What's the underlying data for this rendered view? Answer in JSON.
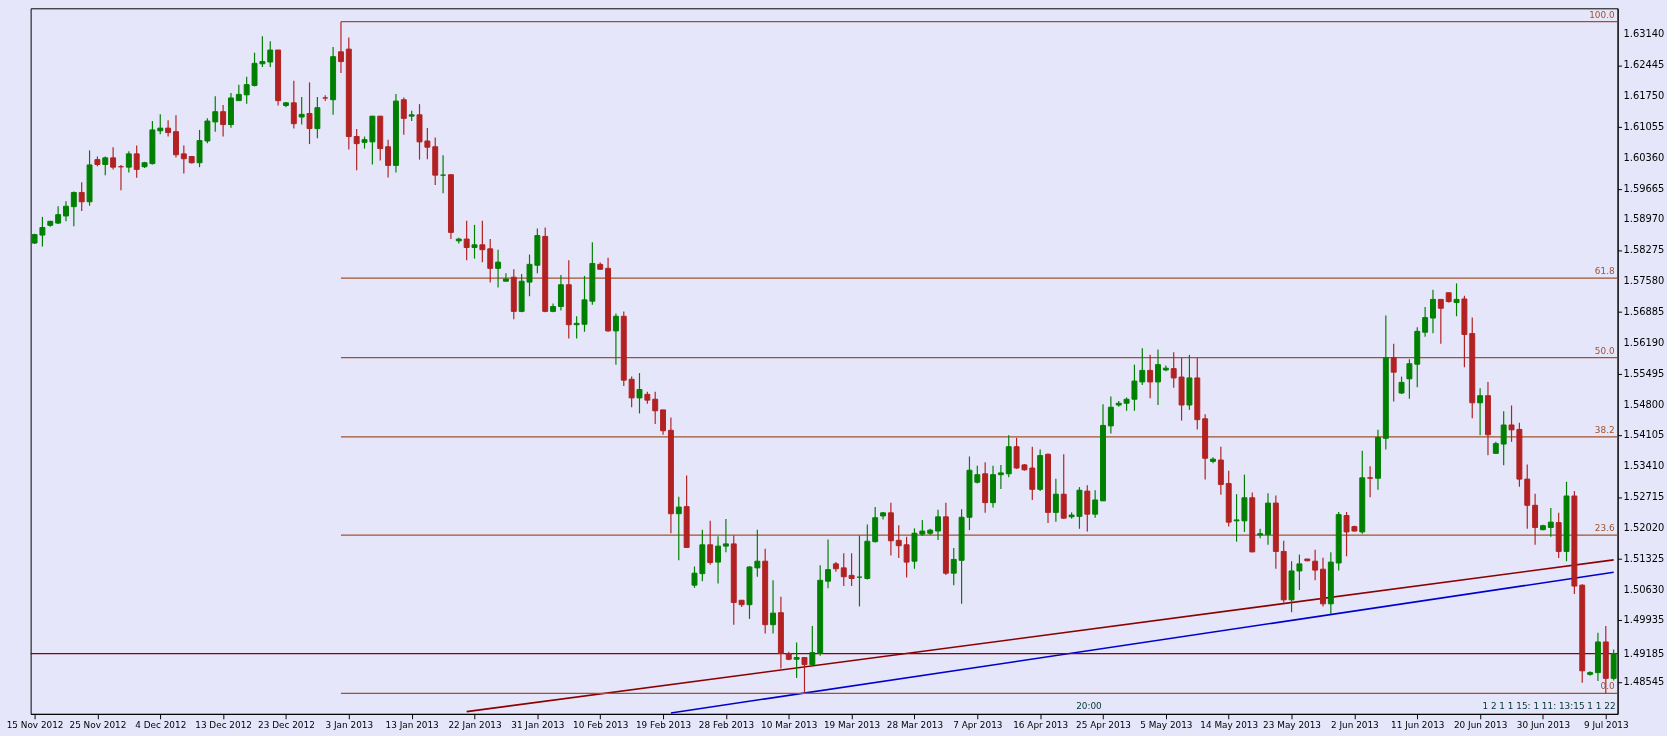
{
  "chart_data": {
    "type": "candlestick",
    "categories": [
      "15 Nov 2012",
      null,
      null,
      null,
      null,
      null,
      null,
      null,
      "25 Nov 2012",
      null,
      null,
      null,
      null,
      null,
      null,
      null,
      "4 Dec 2012",
      null,
      null,
      null,
      null,
      null,
      null,
      null,
      "13 Dec 2012",
      null,
      null,
      null,
      null,
      null,
      null,
      null,
      "23 Dec 2012",
      null,
      null,
      null,
      null,
      null,
      null,
      null,
      "3 Jan 2013",
      null,
      null,
      null,
      null,
      null,
      null,
      null,
      "13 Jan 2013",
      null,
      null,
      null,
      null,
      null,
      null,
      null,
      "22 Jan 2013",
      null,
      null,
      null,
      null,
      null,
      null,
      null,
      "31 Jan 2013",
      null,
      null,
      null,
      null,
      null,
      null,
      null,
      "10 Feb 2013",
      null,
      null,
      null,
      null,
      null,
      null,
      null,
      "19 Feb 2013",
      null,
      null,
      null,
      null,
      null,
      null,
      null,
      "28 Feb 2013",
      null,
      null,
      null,
      null,
      null,
      null,
      null,
      "10 Mar 2013",
      null,
      null,
      null,
      null,
      null,
      null,
      null,
      "19 Mar 2013",
      null,
      null,
      null,
      null,
      null,
      null,
      null,
      "28 Mar 2013",
      null,
      null,
      null,
      null,
      null,
      null,
      null,
      "7 Apr 2013",
      null,
      null,
      null,
      null,
      null,
      null,
      null,
      "16 Apr 2013",
      null,
      null,
      null,
      null,
      null,
      null,
      null,
      "25 Apr 2013",
      null,
      null,
      null,
      null,
      null,
      null,
      null,
      "5 May 2013",
      null,
      null,
      null,
      null,
      null,
      null,
      null,
      "14 May 2013",
      null,
      null,
      null,
      null,
      null,
      null,
      null,
      "23 May 2013",
      null,
      null,
      null,
      null,
      null,
      null,
      null,
      "2 Jun 2013",
      null,
      null,
      null,
      null,
      null,
      null,
      null,
      "11 Jun 2013",
      null,
      null,
      null,
      null,
      null,
      null,
      null,
      "20 Jun 2013",
      null,
      null,
      null,
      null,
      null,
      null,
      null,
      "30 Jun 2013",
      null,
      null,
      null,
      null,
      null,
      null,
      null,
      "9 Jul 2013",
      null
    ],
    "ohlc": [
      [
        1.5844,
        1.5865,
        1.5842,
        1.5863
      ],
      [
        1.5862,
        1.5903,
        1.5836,
        1.5879
      ],
      [
        1.5884,
        1.5894,
        1.5881,
        1.5893
      ],
      [
        1.5889,
        1.5927,
        1.5887,
        1.5908
      ],
      [
        1.5905,
        1.5938,
        1.5893,
        1.5927
      ],
      [
        1.5926,
        1.596,
        1.5882,
        1.5958
      ],
      [
        1.5958,
        1.5981,
        1.5916,
        1.5937
      ],
      [
        1.5937,
        1.6053,
        1.5928,
        1.602
      ],
      [
        1.6032,
        1.6039,
        1.6017,
        1.6021
      ],
      [
        1.6021,
        1.6039,
        1.5997,
        1.6036
      ],
      [
        1.6036,
        1.606,
        1.601,
        1.6015
      ],
      [
        1.6016,
        1.602,
        1.5963,
        1.6016
      ],
      [
        1.6015,
        1.6051,
        1.6003,
        1.6045
      ],
      [
        1.6045,
        1.6064,
        1.5991,
        1.601
      ],
      [
        1.6016,
        1.6027,
        1.6013,
        1.6025
      ],
      [
        1.6023,
        1.6119,
        1.6021,
        1.6099
      ],
      [
        1.6097,
        1.6134,
        1.6089,
        1.6103
      ],
      [
        1.6103,
        1.6121,
        1.6084,
        1.6093
      ],
      [
        1.6095,
        1.6132,
        1.6037,
        1.6043
      ],
      [
        1.6045,
        1.6064,
        1.6001,
        1.6034
      ],
      [
        1.6039,
        1.6039,
        1.6023,
        1.6025
      ],
      [
        1.6025,
        1.6099,
        1.6015,
        1.6075
      ],
      [
        1.6074,
        1.6125,
        1.6069,
        1.6119
      ],
      [
        1.6117,
        1.6175,
        1.6095,
        1.614
      ],
      [
        1.614,
        1.6155,
        1.6084,
        1.6111
      ],
      [
        1.6111,
        1.6182,
        1.6104,
        1.6171
      ],
      [
        1.6165,
        1.6201,
        1.6165,
        1.6179
      ],
      [
        1.6178,
        1.6219,
        1.6158,
        1.6201
      ],
      [
        1.6199,
        1.6273,
        1.6197,
        1.6249
      ],
      [
        1.6248,
        1.631,
        1.6241,
        1.6253
      ],
      [
        1.6252,
        1.6299,
        1.6241,
        1.6279
      ],
      [
        1.6279,
        1.6279,
        1.6154,
        1.6165
      ],
      [
        1.6154,
        1.6162,
        1.615,
        1.616
      ],
      [
        1.616,
        1.621,
        1.6102,
        1.6113
      ],
      [
        1.6128,
        1.6173,
        1.6111,
        1.6134
      ],
      [
        1.6136,
        1.6206,
        1.6067,
        1.6102
      ],
      [
        1.6102,
        1.6173,
        1.608,
        1.6149
      ],
      [
        1.6171,
        1.6177,
        1.6164,
        1.6171
      ],
      [
        1.6167,
        1.6286,
        1.6133,
        1.6264
      ],
      [
        1.6275,
        1.6343,
        1.6227,
        1.6253
      ],
      [
        1.6281,
        1.6307,
        1.6055,
        1.6084
      ],
      [
        1.6084,
        1.6101,
        1.6008,
        1.6068
      ],
      [
        1.6071,
        1.6084,
        1.6057,
        1.6077
      ],
      [
        1.6072,
        1.613,
        1.6021,
        1.613
      ],
      [
        1.613,
        1.613,
        1.603,
        1.6057
      ],
      [
        1.6061,
        1.6077,
        1.5992,
        1.6019
      ],
      [
        1.6019,
        1.618,
        1.6003,
        1.6164
      ],
      [
        1.6167,
        1.6172,
        1.6088,
        1.6125
      ],
      [
        1.613,
        1.6142,
        1.6119,
        1.6133
      ],
      [
        1.6133,
        1.6157,
        1.6032,
        1.6072
      ],
      [
        1.6074,
        1.6103,
        1.6033,
        1.606
      ],
      [
        1.6061,
        1.6082,
        1.5975,
        1.5997
      ],
      [
        1.5997,
        1.6042,
        1.5956,
        1.5997
      ],
      [
        1.5998,
        1.5998,
        1.5853,
        1.5868
      ],
      [
        1.5849,
        1.5856,
        1.5843,
        1.5853
      ],
      [
        1.5853,
        1.5894,
        1.5805,
        1.5834
      ],
      [
        1.5834,
        1.5885,
        1.5809,
        1.584
      ],
      [
        1.584,
        1.5894,
        1.5801,
        1.5829
      ],
      [
        1.5831,
        1.5853,
        1.5755,
        1.5787
      ],
      [
        1.5787,
        1.5829,
        1.5744,
        1.5801
      ],
      [
        1.5758,
        1.5776,
        1.5758,
        1.5763
      ],
      [
        1.5767,
        1.5785,
        1.5672,
        1.569
      ],
      [
        1.569,
        1.5774,
        1.5688,
        1.5758
      ],
      [
        1.5756,
        1.5818,
        1.5724,
        1.5796
      ],
      [
        1.5794,
        1.5877,
        1.5776,
        1.5861
      ],
      [
        1.5859,
        1.5879,
        1.5688,
        1.569
      ],
      [
        1.569,
        1.5708,
        1.5688,
        1.5701
      ],
      [
        1.5701,
        1.5772,
        1.5692,
        1.575
      ],
      [
        1.575,
        1.5805,
        1.5629,
        1.566
      ],
      [
        1.566,
        1.5679,
        1.5629,
        1.5663
      ],
      [
        1.5661,
        1.577,
        1.5644,
        1.5716
      ],
      [
        1.5713,
        1.5846,
        1.5705,
        1.5798
      ],
      [
        1.5796,
        1.58,
        1.5783,
        1.5785
      ],
      [
        1.5787,
        1.5811,
        1.5644,
        1.5646
      ],
      [
        1.5646,
        1.5685,
        1.557,
        1.5679
      ],
      [
        1.5679,
        1.569,
        1.5522,
        1.5535
      ],
      [
        1.5537,
        1.5543,
        1.5474,
        1.5495
      ],
      [
        1.5495,
        1.5551,
        1.546,
        1.5514
      ],
      [
        1.5503,
        1.5509,
        1.5482,
        1.549
      ],
      [
        1.5492,
        1.5509,
        1.5436,
        1.5466
      ],
      [
        1.5468,
        1.5468,
        1.5412,
        1.5421
      ],
      [
        1.5422,
        1.5451,
        1.519,
        1.5234
      ],
      [
        1.5234,
        1.5272,
        1.5129,
        1.5249
      ],
      [
        1.525,
        1.532,
        1.5158,
        1.5158
      ],
      [
        1.5073,
        1.5115,
        1.5067,
        1.51
      ],
      [
        1.5099,
        1.5198,
        1.5082,
        1.5164
      ],
      [
        1.5164,
        1.5218,
        1.5119,
        1.5124
      ],
      [
        1.5125,
        1.5183,
        1.5077,
        1.5161
      ],
      [
        1.5161,
        1.5222,
        1.5147,
        1.5166
      ],
      [
        1.5166,
        1.5185,
        1.4984,
        1.5034
      ],
      [
        1.5039,
        1.5039,
        1.5024,
        1.5029
      ],
      [
        1.5029,
        1.5116,
        1.4997,
        1.5114
      ],
      [
        1.5112,
        1.5198,
        1.5092,
        1.5127
      ],
      [
        1.5127,
        1.5155,
        1.4964,
        1.4984
      ],
      [
        1.4984,
        1.5084,
        1.4964,
        1.501
      ],
      [
        1.5011,
        1.5047,
        1.4885,
        1.4919
      ],
      [
        1.4919,
        1.4923,
        1.4904,
        1.4906
      ],
      [
        1.4906,
        1.4944,
        1.4864,
        1.491
      ],
      [
        1.491,
        1.491,
        1.483,
        1.4894
      ],
      [
        1.4894,
        1.4981,
        1.4892,
        1.4921
      ],
      [
        1.4919,
        1.5118,
        1.4914,
        1.5084
      ],
      [
        1.5082,
        1.5176,
        1.5066,
        1.5108
      ],
      [
        1.5121,
        1.5125,
        1.5103,
        1.511
      ],
      [
        1.5112,
        1.5145,
        1.5071,
        1.5092
      ],
      [
        1.5095,
        1.5145,
        1.5071,
        1.5088
      ],
      [
        1.5091,
        1.5185,
        1.5025,
        1.5091
      ],
      [
        1.5088,
        1.521,
        1.5086,
        1.5172
      ],
      [
        1.5171,
        1.5249,
        1.5169,
        1.5225
      ],
      [
        1.5229,
        1.5238,
        1.5221,
        1.5236
      ],
      [
        1.5236,
        1.5259,
        1.514,
        1.5173
      ],
      [
        1.5174,
        1.5208,
        1.5134,
        1.5162
      ],
      [
        1.5164,
        1.5182,
        1.509,
        1.5125
      ],
      [
        1.5127,
        1.5201,
        1.511,
        1.519
      ],
      [
        1.5188,
        1.522,
        1.5184,
        1.5195
      ],
      [
        1.519,
        1.52,
        1.5186,
        1.5197
      ],
      [
        1.5195,
        1.5243,
        1.5175,
        1.5227
      ],
      [
        1.5227,
        1.5259,
        1.5096,
        1.51
      ],
      [
        1.51,
        1.5157,
        1.5073,
        1.5131
      ],
      [
        1.5129,
        1.5244,
        1.5031,
        1.5226
      ],
      [
        1.5226,
        1.5363,
        1.5197,
        1.5332
      ],
      [
        1.5305,
        1.5342,
        1.5302,
        1.5322
      ],
      [
        1.5324,
        1.535,
        1.5236,
        1.5259
      ],
      [
        1.5259,
        1.5342,
        1.5248,
        1.5322
      ],
      [
        1.5322,
        1.5344,
        1.529,
        1.5326
      ],
      [
        1.5324,
        1.5411,
        1.5316,
        1.5385
      ],
      [
        1.5385,
        1.5405,
        1.5335,
        1.5337
      ],
      [
        1.5344,
        1.5346,
        1.5331,
        1.5333
      ],
      [
        1.5337,
        1.5385,
        1.5265,
        1.5289
      ],
      [
        1.5289,
        1.5379,
        1.5285,
        1.5365
      ],
      [
        1.5368,
        1.537,
        1.5213,
        1.5237
      ],
      [
        1.5237,
        1.5313,
        1.5216,
        1.5278
      ],
      [
        1.5278,
        1.5368,
        1.5222,
        1.5224
      ],
      [
        1.5227,
        1.5237,
        1.5223,
        1.5231
      ],
      [
        1.5228,
        1.5294,
        1.52,
        1.5287
      ],
      [
        1.5285,
        1.5298,
        1.5194,
        1.5233
      ],
      [
        1.5233,
        1.5287,
        1.5225,
        1.5265
      ],
      [
        1.5263,
        1.5481,
        1.5263,
        1.5433
      ],
      [
        1.5432,
        1.5498,
        1.5415,
        1.5474
      ],
      [
        1.5479,
        1.5488,
        1.5475,
        1.5483
      ],
      [
        1.5483,
        1.5496,
        1.5466,
        1.5492
      ],
      [
        1.5492,
        1.557,
        1.5466,
        1.5533
      ],
      [
        1.5531,
        1.5607,
        1.5524,
        1.5557
      ],
      [
        1.5557,
        1.5592,
        1.5494,
        1.5531
      ],
      [
        1.5531,
        1.5604,
        1.5479,
        1.557
      ],
      [
        1.5558,
        1.5568,
        1.5555,
        1.5562
      ],
      [
        1.5561,
        1.5598,
        1.5518,
        1.554
      ],
      [
        1.5542,
        1.5585,
        1.5444,
        1.5479
      ],
      [
        1.5479,
        1.5592,
        1.5468,
        1.554
      ],
      [
        1.554,
        1.5585,
        1.5424,
        1.5446
      ],
      [
        1.5448,
        1.5458,
        1.5311,
        1.5359
      ],
      [
        1.5352,
        1.5361,
        1.5348,
        1.5357
      ],
      [
        1.5355,
        1.5385,
        1.5277,
        1.53
      ],
      [
        1.5302,
        1.5331,
        1.5205,
        1.5215
      ],
      [
        1.5218,
        1.5278,
        1.5171,
        1.522
      ],
      [
        1.5218,
        1.5322,
        1.5193,
        1.527
      ],
      [
        1.527,
        1.5282,
        1.5147,
        1.5148
      ],
      [
        1.5186,
        1.52,
        1.5179,
        1.5189
      ],
      [
        1.5187,
        1.528,
        1.5164,
        1.5258
      ],
      [
        1.5258,
        1.5275,
        1.511,
        1.5149
      ],
      [
        1.5149,
        1.5173,
        1.5034,
        1.504
      ],
      [
        1.504,
        1.5127,
        1.5012,
        1.5105
      ],
      [
        1.5105,
        1.5142,
        1.5062,
        1.5121
      ],
      [
        1.5132,
        1.5132,
        1.5127,
        1.5128
      ],
      [
        1.5127,
        1.5153,
        1.5084,
        1.5107
      ],
      [
        1.5109,
        1.5135,
        1.5025,
        1.5031
      ],
      [
        1.5031,
        1.5147,
        1.5008,
        1.5125
      ],
      [
        1.5123,
        1.5238,
        1.5106,
        1.5232
      ],
      [
        1.523,
        1.5238,
        1.5138,
        1.5193
      ],
      [
        1.5205,
        1.5207,
        1.5194,
        1.5195
      ],
      [
        1.5193,
        1.5376,
        1.5189,
        1.5315
      ],
      [
        1.5315,
        1.5341,
        1.5271,
        1.5314
      ],
      [
        1.5314,
        1.5423,
        1.5288,
        1.5406
      ],
      [
        1.5404,
        1.5681,
        1.5379,
        1.5586
      ],
      [
        1.5586,
        1.5617,
        1.5487,
        1.5553
      ],
      [
        1.5506,
        1.5543,
        1.5504,
        1.553
      ],
      [
        1.5538,
        1.5582,
        1.5493,
        1.5572
      ],
      [
        1.5571,
        1.5654,
        1.5519,
        1.5645
      ],
      [
        1.5643,
        1.57,
        1.5633,
        1.5676
      ],
      [
        1.5675,
        1.5739,
        1.5641,
        1.5717
      ],
      [
        1.5717,
        1.5717,
        1.5617,
        1.5697
      ],
      [
        1.5732,
        1.5732,
        1.571,
        1.5712
      ],
      [
        1.571,
        1.5753,
        1.5679,
        1.5717
      ],
      [
        1.5718,
        1.5725,
        1.5564,
        1.5638
      ],
      [
        1.564,
        1.5676,
        1.5449,
        1.5484
      ],
      [
        1.5484,
        1.5517,
        1.5411,
        1.55
      ],
      [
        1.55,
        1.5531,
        1.5366,
        1.5412
      ],
      [
        1.537,
        1.5396,
        1.5369,
        1.5392
      ],
      [
        1.5391,
        1.5465,
        1.5343,
        1.5434
      ],
      [
        1.5434,
        1.5478,
        1.5396,
        1.5423
      ],
      [
        1.5424,
        1.5439,
        1.5295,
        1.5312
      ],
      [
        1.5312,
        1.5345,
        1.52,
        1.5253
      ],
      [
        1.5253,
        1.5279,
        1.5164,
        1.5203
      ],
      [
        1.5198,
        1.5209,
        1.5197,
        1.5207
      ],
      [
        1.5203,
        1.5247,
        1.5182,
        1.5215
      ],
      [
        1.5214,
        1.5236,
        1.5134,
        1.5149
      ],
      [
        1.5149,
        1.5306,
        1.5127,
        1.5274
      ],
      [
        1.5274,
        1.5285,
        1.5053,
        1.5071
      ],
      [
        1.5073,
        1.5075,
        1.4853,
        1.488
      ],
      [
        1.4872,
        1.4879,
        1.4869,
        1.4876
      ],
      [
        1.4876,
        1.4966,
        1.4857,
        1.4945
      ],
      [
        1.4945,
        1.4981,
        1.4829,
        1.4863
      ],
      [
        1.4863,
        1.4928,
        1.4858,
        1.4919
      ]
    ],
    "colors": [
      "#008000",
      "#008000",
      "#008000",
      "#008000",
      "#008000",
      "#008000",
      "#b22222",
      "#008000",
      "#b22222",
      "#008000",
      "#b22222",
      "#b22222",
      "#008000",
      "#b22222",
      "#008000",
      "#008000",
      "#008000",
      "#b22222",
      "#b22222",
      "#b22222",
      "#b22222",
      "#008000",
      "#008000",
      "#008000",
      "#b22222",
      "#008000",
      "#008000",
      "#008000",
      "#008000",
      "#008000",
      "#008000",
      "#b22222",
      "#008000",
      "#b22222",
      "#008000",
      "#b22222",
      "#008000",
      "#b22222",
      "#008000",
      "#b22222",
      "#b22222",
      "#b22222",
      "#008000",
      "#008000",
      "#b22222",
      "#b22222",
      "#008000",
      "#b22222",
      "#008000",
      "#b22222",
      "#b22222",
      "#b22222",
      "#008000",
      "#b22222",
      "#008000",
      "#b22222",
      "#008000",
      "#b22222",
      "#b22222",
      "#008000",
      "#008000",
      "#b22222",
      "#008000",
      "#008000",
      "#008000",
      "#b22222",
      "#008000",
      "#008000",
      "#b22222",
      "#008000",
      "#008000",
      "#008000",
      "#b22222",
      "#b22222",
      "#008000",
      "#b22222",
      "#b22222",
      "#008000",
      "#b22222",
      "#b22222",
      "#b22222",
      "#b22222",
      "#008000",
      "#b22222",
      "#008000",
      "#008000",
      "#b22222",
      "#008000",
      "#008000",
      "#b22222",
      "#b22222",
      "#008000",
      "#008000",
      "#b22222",
      "#008000",
      "#b22222",
      "#b22222",
      "#008000",
      "#b22222",
      "#008000",
      "#008000",
      "#008000",
      "#b22222",
      "#b22222",
      "#b22222",
      "#008000",
      "#008000",
      "#008000",
      "#008000",
      "#b22222",
      "#b22222",
      "#b22222",
      "#008000",
      "#008000",
      "#008000",
      "#008000",
      "#b22222",
      "#008000",
      "#008000",
      "#008000",
      "#008000",
      "#b22222",
      "#008000",
      "#008000",
      "#008000",
      "#b22222",
      "#b22222",
      "#b22222",
      "#008000",
      "#b22222",
      "#008000",
      "#b22222",
      "#008000",
      "#008000",
      "#b22222",
      "#008000",
      "#008000",
      "#008000",
      "#008000",
      "#008000",
      "#008000",
      "#008000",
      "#b22222",
      "#008000",
      "#008000",
      "#b22222",
      "#b22222",
      "#008000",
      "#b22222",
      "#b22222",
      "#008000",
      "#b22222",
      "#b22222",
      "#008000",
      "#008000",
      "#b22222",
      "#008000",
      "#008000",
      "#b22222",
      "#b22222",
      "#008000",
      "#008000",
      "#b22222",
      "#b22222",
      "#b22222",
      "#008000",
      "#008000",
      "#b22222",
      "#b22222",
      "#008000",
      "#b22222",
      "#008000",
      "#008000",
      "#b22222",
      "#008000",
      "#008000",
      "#008000",
      "#008000",
      "#008000",
      "#b22222",
      "#b22222",
      "#008000",
      "#b22222",
      "#b22222",
      "#008000",
      "#b22222",
      "#008000",
      "#008000",
      "#b22222",
      "#b22222",
      "#b22222",
      "#b22222",
      "#008000",
      "#008000",
      "#b22222",
      "#008000",
      "#b22222",
      "#b22222",
      "#008000",
      "#008000",
      "#b22222",
      "#008000"
    ],
    "series": [
      {
        "type": "line",
        "color": "#8b0000",
        "values": [
          null,
          null,
          null,
          null,
          null,
          null,
          null,
          null,
          null,
          null,
          null,
          null,
          null,
          null,
          null,
          null,
          null,
          null,
          null,
          null,
          null,
          null,
          null,
          null,
          null,
          null,
          null,
          null,
          null,
          null,
          null,
          null,
          null,
          null,
          null,
          null,
          null,
          null,
          null,
          null,
          null,
          null,
          null,
          null,
          null,
          null,
          null,
          null,
          null,
          null,
          null,
          null,
          null,
          null,
          null,
          1.4788,
          null,
          null,
          null,
          null,
          null,
          null,
          null,
          null,
          null,
          null,
          null,
          null,
          null,
          null,
          null,
          null,
          null,
          null,
          null,
          null,
          null,
          null,
          null,
          null,
          null,
          null,
          null,
          null,
          null,
          null,
          null,
          null,
          null,
          null,
          null,
          null,
          null,
          null,
          null,
          null,
          null,
          null,
          null,
          null,
          null,
          null,
          null,
          null,
          null,
          null,
          null,
          null,
          null,
          null,
          null,
          null,
          null,
          null,
          null,
          null,
          null,
          null,
          null,
          null,
          null,
          null,
          null,
          null,
          null,
          null,
          null,
          null,
          null,
          null,
          null,
          null,
          null,
          null,
          null,
          null,
          null,
          null,
          null,
          null,
          null,
          null,
          null,
          null,
          null,
          null,
          null,
          null,
          null,
          null,
          null,
          null,
          null,
          null,
          null,
          null,
          null,
          null,
          null,
          null,
          null,
          null,
          null,
          null,
          null,
          null,
          null,
          null,
          null,
          null,
          null,
          null,
          null,
          null,
          null,
          null,
          null,
          null,
          null,
          null,
          null,
          null,
          null,
          null,
          null,
          null,
          null,
          null,
          null,
          null,
          null,
          null,
          null,
          null,
          null,
          null,
          null,
          null,
          null,
          null,
          null,
          1.513
        ]
      },
      {
        "type": "line",
        "color": "#0000cd",
        "values": [
          null,
          null,
          null,
          null,
          null,
          null,
          null,
          null,
          null,
          null,
          null,
          null,
          null,
          null,
          null,
          null,
          null,
          null,
          null,
          null,
          null,
          null,
          null,
          null,
          null,
          null,
          null,
          null,
          null,
          null,
          null,
          null,
          null,
          null,
          null,
          null,
          null,
          null,
          null,
          null,
          null,
          null,
          null,
          null,
          null,
          null,
          null,
          null,
          null,
          null,
          null,
          null,
          null,
          null,
          null,
          null,
          null,
          null,
          null,
          null,
          null,
          null,
          null,
          null,
          null,
          null,
          null,
          null,
          null,
          null,
          null,
          null,
          null,
          null,
          null,
          null,
          null,
          null,
          null,
          null,
          null,
          1.4785,
          null,
          null,
          null,
          null,
          null,
          null,
          null,
          null,
          null,
          null,
          null,
          null,
          null,
          null,
          null,
          null,
          null,
          null,
          null,
          null,
          null,
          null,
          null,
          null,
          null,
          null,
          null,
          null,
          null,
          null,
          null,
          null,
          null,
          null,
          null,
          null,
          null,
          null,
          null,
          null,
          null,
          null,
          null,
          null,
          null,
          null,
          null,
          null,
          null,
          null,
          null,
          null,
          null,
          null,
          null,
          null,
          null,
          null,
          null,
          null,
          null,
          null,
          null,
          null,
          null,
          null,
          null,
          null,
          null,
          null,
          null,
          null,
          null,
          null,
          null,
          null,
          null,
          null,
          null,
          null,
          null,
          null,
          null,
          null,
          null,
          null,
          null,
          null,
          null,
          null,
          null,
          null,
          null,
          null,
          null,
          null,
          null,
          null,
          null,
          null,
          null,
          null,
          null,
          null,
          null,
          null,
          null,
          null,
          null,
          null,
          null,
          null,
          null,
          null,
          null,
          null,
          null,
          null,
          null,
          1.5102
        ]
      }
    ],
    "ylim": [
      1.4783,
      1.6373
    ],
    "yticks": [
      {
        "value": 1.6314,
        "label": "1.63140"
      },
      {
        "value": 1.62445,
        "label": "1.62445"
      },
      {
        "value": 1.6175,
        "label": "1.61750"
      },
      {
        "value": 1.61055,
        "label": "1.61055"
      },
      {
        "value": 1.6036,
        "label": "1.60360"
      },
      {
        "value": 1.59665,
        "label": "1.59665"
      },
      {
        "value": 1.5897,
        "label": "1.58970"
      },
      {
        "value": 1.58275,
        "label": "1.58275"
      },
      {
        "value": 1.5758,
        "label": "1.57580"
      },
      {
        "value": 1.56885,
        "label": "1.56885"
      },
      {
        "value": 1.5619,
        "label": "1.56190"
      },
      {
        "value": 1.55495,
        "label": "1.55495"
      },
      {
        "value": 1.548,
        "label": "1.54800"
      },
      {
        "value": 1.54105,
        "label": "1.54105"
      },
      {
        "value": 1.5341,
        "label": "1.53410"
      },
      {
        "value": 1.52715,
        "label": "1.52715"
      },
      {
        "value": 1.5202,
        "label": "1.52020"
      },
      {
        "value": 1.51325,
        "label": "1.51325"
      },
      {
        "value": 1.5063,
        "label": "1.50630"
      },
      {
        "value": 1.49935,
        "label": "1.49935"
      },
      {
        "value": 1.49185,
        "label": "1.49185"
      },
      {
        "value": 1.48545,
        "label": "1.48545"
      }
    ],
    "ref_lines": [
      {
        "axis": "y",
        "value": 1.6343,
        "color": "#a0522d"
      },
      {
        "axis": "y",
        "value": 1.5765,
        "color": "#a0522d"
      },
      {
        "axis": "y",
        "value": 1.5586,
        "color": "#a0522d"
      },
      {
        "axis": "y",
        "value": 1.5407,
        "color": "#a0522d"
      },
      {
        "axis": "y",
        "value": 1.5186,
        "color": "#a0522d"
      },
      {
        "axis": "y",
        "value": 1.4829,
        "color": "#a0522d"
      },
      {
        "axis": "y",
        "value": 1.49185,
        "color": "#8b0000"
      }
    ],
    "annotations": [
      {
        "text": "100.0",
        "y": 1.6343
      },
      {
        "text": "61.8",
        "y": 1.5765
      },
      {
        "text": "50.0",
        "y": 1.5586
      },
      {
        "text": "38.2",
        "y": 1.5407
      },
      {
        "text": "23.6",
        "y": 1.5186
      },
      {
        "text": "0.0",
        "y": 1.4829
      },
      "20:00",
      "1 2 1 1 15: 1 11: 13:15 1 1 22"
    ],
    "grid": false
  }
}
